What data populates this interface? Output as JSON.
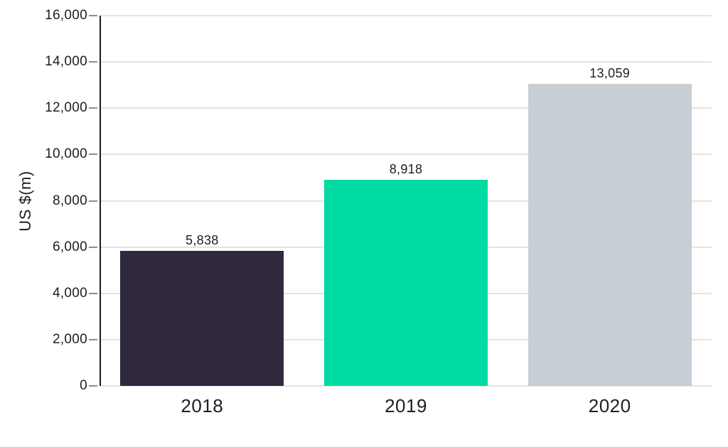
{
  "chart_data": {
    "type": "bar",
    "title": "",
    "xlabel": "",
    "ylabel": "US $(m)",
    "categories": [
      "2018",
      "2019",
      "2020"
    ],
    "values": [
      5838,
      8918,
      13059
    ],
    "value_labels": [
      "5,838",
      "8,918",
      "13,059"
    ],
    "bar_colors": [
      "#2f283e",
      "#00dba4",
      "#c7ced4"
    ],
    "ylim": [
      0,
      16000
    ],
    "yticks": [
      {
        "value": 0,
        "label": "0"
      },
      {
        "value": 2000,
        "label": "2,000"
      },
      {
        "value": 4000,
        "label": "4,000"
      },
      {
        "value": 6000,
        "label": "6,000"
      },
      {
        "value": 8000,
        "label": "8,000"
      },
      {
        "value": 10000,
        "label": "10,000"
      },
      {
        "value": 12000,
        "label": "12,000"
      },
      {
        "value": 14000,
        "label": "14,000"
      },
      {
        "value": 16000,
        "label": "16,000"
      }
    ],
    "grid": "horizontal",
    "legend": "none",
    "colors": {
      "axis_line": "#1c1c1c",
      "gridline": "#e4e4e4",
      "tick": "#8c8c8c",
      "text": "#1e1e1e",
      "background": "#ffffff"
    }
  }
}
